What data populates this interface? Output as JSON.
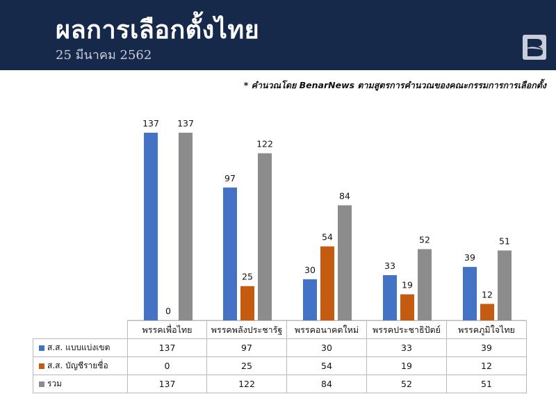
{
  "header": {
    "title": "ผลการเลือกตั้งไทย",
    "date": "25 มีนาคม 2562"
  },
  "note": "* คำนวณโดย BenarNews ตามสูตรการคำนวณของคณะกรรมการการเลือกตั้ง",
  "colors": {
    "header_bg": "#16294a",
    "blue": "#4472c4",
    "orange": "#c55a11",
    "gray": "#8c8c8c"
  },
  "logo_icon": "benarnews-logo-icon",
  "chart_data": {
    "type": "bar",
    "categories": [
      "พรรคเพื่อไทย",
      "พรรคพลังประชารัฐ",
      "พรรคอนาคตใหม่",
      "พรรคประชาธิปัตย์",
      "พรรคภูมิใจไทย"
    ],
    "series": [
      {
        "name": "ส.ส. แบบแบ่งเขต",
        "values": [
          137,
          97,
          30,
          33,
          39
        ],
        "color": "#4472c4"
      },
      {
        "name": "ส.ส. บัญชีรายชื่อ",
        "values": [
          0,
          25,
          54,
          19,
          12
        ],
        "color": "#c55a11"
      },
      {
        "name": "รวม",
        "values": [
          137,
          122,
          84,
          52,
          51
        ],
        "color": "#8c8c8c"
      }
    ],
    "ylim": [
      0,
      140
    ],
    "grid": false,
    "legend": "data-table"
  }
}
